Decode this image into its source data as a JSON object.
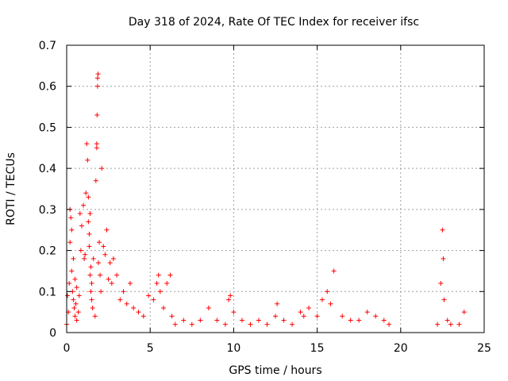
{
  "chart_data": {
    "type": "scatter",
    "title": "Day 318 of 2024, Rate Of TEC Index for receiver ifsc",
    "xlabel": "GPS time / hours",
    "ylabel": "ROTI / TECUs",
    "xlim": [
      0,
      25
    ],
    "ylim": [
      0,
      0.7
    ],
    "xticks": [
      "0",
      "5",
      "10",
      "15",
      "20",
      "25"
    ],
    "yticks": [
      "0",
      "0.1",
      "0.2",
      "0.3",
      "0.4",
      "0.5",
      "0.6",
      "0.7"
    ],
    "grid": true,
    "marker": "+",
    "color": "#ff0000",
    "series": [
      {
        "values_x": [
          0.0,
          0.05,
          0.1,
          0.15,
          0.2,
          0.2,
          0.25,
          0.3,
          0.3,
          0.35,
          0.4,
          0.4,
          0.45,
          0.5,
          0.5,
          0.55,
          0.6,
          0.6,
          0.7,
          0.75,
          0.8,
          0.85,
          0.9,
          1.0,
          1.05,
          1.1,
          1.15,
          1.2,
          1.25,
          1.3,
          1.3,
          1.35,
          1.35,
          1.4,
          1.4,
          1.45,
          1.45,
          1.5,
          1.5,
          1.55,
          1.6,
          1.7,
          1.75,
          1.8,
          1.8,
          1.82,
          1.85,
          1.85,
          1.88,
          1.9,
          1.95,
          2.0,
          2.05,
          2.1,
          2.2,
          2.3,
          2.4,
          2.5,
          2.6,
          2.7,
          2.8,
          3.0,
          3.2,
          3.4,
          3.6,
          3.8,
          4.0,
          4.3,
          4.6,
          4.9,
          5.2,
          5.4,
          5.5,
          5.6,
          5.8,
          6.0,
          6.2,
          6.3,
          6.5,
          7.0,
          7.5,
          8.0,
          8.5,
          9.0,
          9.5,
          9.7,
          9.8,
          10.0,
          10.5,
          11.0,
          11.5,
          12.0,
          12.5,
          12.6,
          13.0,
          13.5,
          14.0,
          14.2,
          14.5,
          15.0,
          15.3,
          15.6,
          15.8,
          16.0,
          16.5,
          17.0,
          17.5,
          18.0,
          18.5,
          19.0,
          19.3,
          22.2,
          22.4,
          22.5,
          22.55,
          22.6,
          22.8,
          23.0,
          23.5,
          23.8
        ],
        "values_y": [
          0.02,
          0.09,
          0.05,
          0.12,
          0.3,
          0.22,
          0.28,
          0.15,
          0.25,
          0.1,
          0.08,
          0.18,
          0.06,
          0.13,
          0.04,
          0.07,
          0.11,
          0.03,
          0.05,
          0.09,
          0.29,
          0.2,
          0.26,
          0.31,
          0.18,
          0.19,
          0.34,
          0.46,
          0.42,
          0.27,
          0.33,
          0.24,
          0.21,
          0.14,
          0.29,
          0.1,
          0.16,
          0.08,
          0.12,
          0.06,
          0.18,
          0.04,
          0.37,
          0.45,
          0.46,
          0.53,
          0.6,
          0.62,
          0.63,
          0.17,
          0.22,
          0.14,
          0.1,
          0.4,
          0.21,
          0.19,
          0.25,
          0.13,
          0.17,
          0.12,
          0.18,
          0.14,
          0.08,
          0.1,
          0.07,
          0.12,
          0.06,
          0.05,
          0.04,
          0.09,
          0.08,
          0.12,
          0.14,
          0.1,
          0.06,
          0.12,
          0.14,
          0.04,
          0.02,
          0.03,
          0.02,
          0.03,
          0.06,
          0.03,
          0.02,
          0.08,
          0.09,
          0.05,
          0.03,
          0.02,
          0.03,
          0.02,
          0.04,
          0.07,
          0.03,
          0.02,
          0.05,
          0.04,
          0.06,
          0.04,
          0.08,
          0.1,
          0.07,
          0.15,
          0.04,
          0.03,
          0.03,
          0.05,
          0.04,
          0.03,
          0.02,
          0.02,
          0.12,
          0.25,
          0.18,
          0.08,
          0.03,
          0.02,
          0.02,
          0.05
        ]
      }
    ]
  }
}
